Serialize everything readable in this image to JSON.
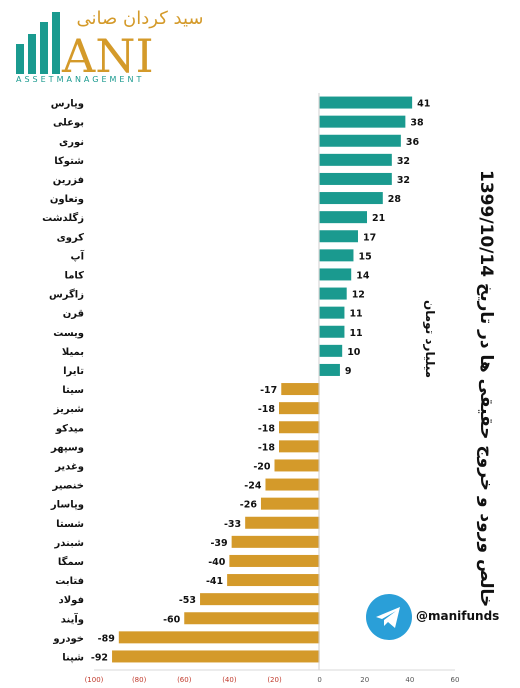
{
  "logo": {
    "persian_name": "سید کردان صانی",
    "brand": "ANI",
    "subtitle": "ASSETMANAGEMENT"
  },
  "side_title": "1399/10/14 خالص ورود و خروج حقیقی ها در تاریخ",
  "unit_label": "میلیارد تومان",
  "telegram": {
    "icon": "telegram-icon",
    "handle": "@manifunds"
  },
  "colors": {
    "positive": "#1a9a8f",
    "negative": "#d49a2a",
    "axis": "#555555",
    "negative_tick": "#c0392b"
  },
  "chart_data": {
    "type": "bar",
    "orientation": "horizontal",
    "categories": [
      "وپارس",
      "بوعلی",
      "نوری",
      "شتوکا",
      "فزرین",
      "وتعاون",
      "زگلدشت",
      "کروی",
      "آپ",
      "کاما",
      "زاگرس",
      "قرن",
      "ویست",
      "بمیلا",
      "تایرا",
      "سیتا",
      "شبریز",
      "میدکو",
      "وسپهر",
      "وغدیر",
      "خنصیر",
      "وپاسار",
      "شستا",
      "شبندر",
      "سمگا",
      "فتابت",
      "فولاد",
      "وآیند",
      "خودرو",
      "شپنا"
    ],
    "values": [
      41,
      38,
      36,
      32,
      32,
      28,
      21,
      17,
      15,
      14,
      12,
      11,
      11,
      10,
      9,
      -17,
      -18,
      -18,
      -18,
      -20,
      -24,
      -26,
      -33,
      -39,
      -40,
      -41,
      -53,
      -60,
      -89,
      -92
    ],
    "xlim": [
      -100,
      60
    ],
    "x_ticks": [
      -100,
      -80,
      -60,
      -40,
      -20,
      0,
      20,
      40,
      60
    ],
    "x_tick_labels": [
      "(100)",
      "(80)",
      "(60)",
      "(40)",
      "(20)",
      "0",
      "20",
      "40",
      "60"
    ],
    "value_labels": [
      "41",
      "38",
      "36",
      "32",
      "32",
      "28",
      "21",
      "17",
      "15",
      "14",
      "12",
      "11",
      "11",
      "10",
      "9",
      "-17",
      "-18",
      "-18",
      "-18",
      "-20",
      "-24",
      "-26",
      "-33",
      "-39",
      "-40",
      "-41",
      "-53",
      "-60",
      "-89",
      "-92"
    ],
    "grid": false
  }
}
